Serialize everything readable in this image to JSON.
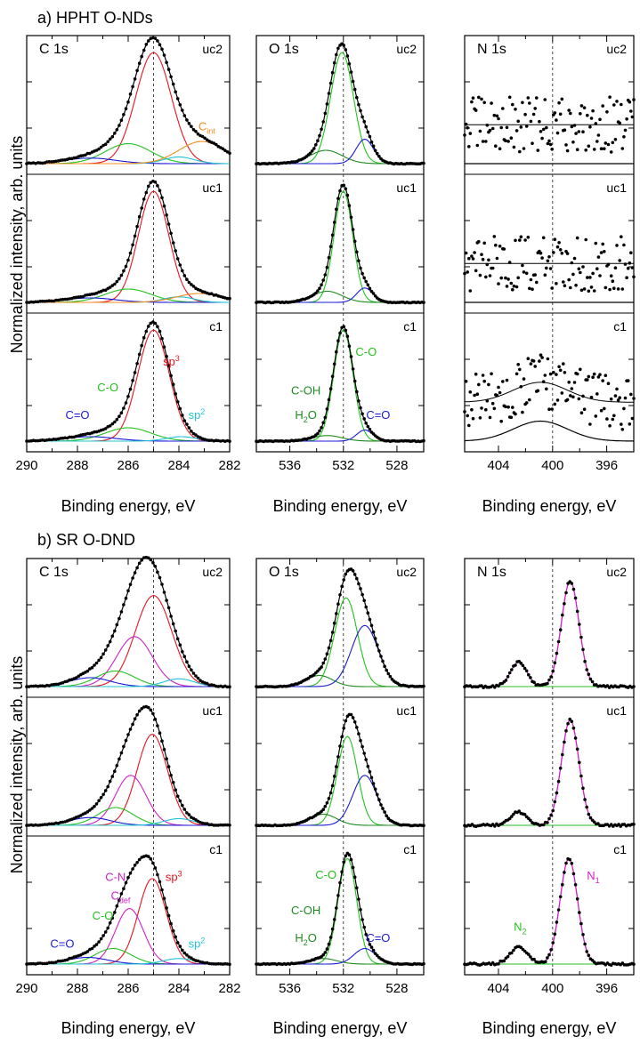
{
  "figure": {
    "section_a": "a) HPHT O-NDs",
    "section_b": "b) SR O-DND",
    "ylabel": "Normalized intensity, arb. units",
    "xlabel": "Binding energy, eV"
  },
  "colors": {
    "sp3": "#e8141c",
    "sp2": "#1fc3d6",
    "CO": "#22c21f",
    "COdark": "#1e8a1e",
    "CeqO": "#1a1ad6",
    "Cint": "#f08c1e",
    "CN": "#d020c8",
    "N1": "#d020c8",
    "N2": "#22c21f"
  },
  "chart_data": [
    {
      "type": "line",
      "id": "a-C1s",
      "title": "C 1s",
      "xlim": [
        290,
        282
      ],
      "x_reversed": true,
      "xticks": [
        290,
        288,
        286,
        284,
        282
      ],
      "ref_line": 285.0,
      "spectra": [
        {
          "name": "uc2",
          "peaks": [
            {
              "label": "sp3",
              "center": 285.0,
              "height": 1.0,
              "width": 0.7,
              "color": "#e8141c"
            },
            {
              "label": "C-O",
              "center": 286.0,
              "height": 0.18,
              "width": 0.9,
              "color": "#22c21f"
            },
            {
              "label": "C=O",
              "center": 287.5,
              "height": 0.05,
              "width": 1.0,
              "color": "#1a1ad6"
            },
            {
              "label": "sp2",
              "center": 284.0,
              "height": 0.06,
              "width": 0.6,
              "color": "#1fc3d6"
            },
            {
              "label": "Cint",
              "center": 283.1,
              "height": 0.2,
              "width": 0.9,
              "color": "#f08c1e"
            }
          ]
        },
        {
          "name": "uc1",
          "peaks": [
            {
              "label": "sp3",
              "center": 285.0,
              "height": 1.0,
              "width": 0.6,
              "color": "#e8141c"
            },
            {
              "label": "C-O",
              "center": 286.0,
              "height": 0.12,
              "width": 0.9,
              "color": "#22c21f"
            },
            {
              "label": "C=O",
              "center": 287.5,
              "height": 0.04,
              "width": 1.0,
              "color": "#1a1ad6"
            },
            {
              "label": "sp2",
              "center": 284.0,
              "height": 0.05,
              "width": 0.6,
              "color": "#1fc3d6"
            },
            {
              "label": "Cint",
              "center": 283.2,
              "height": 0.08,
              "width": 0.9,
              "color": "#f08c1e"
            }
          ]
        },
        {
          "name": "c1",
          "peaks": [
            {
              "label": "sp3",
              "center": 285.0,
              "height": 1.0,
              "width": 0.62,
              "color": "#e8141c"
            },
            {
              "label": "C-O",
              "center": 286.0,
              "height": 0.12,
              "width": 0.9,
              "color": "#22c21f"
            },
            {
              "label": "C=O",
              "center": 287.5,
              "height": 0.04,
              "width": 1.0,
              "color": "#1a1ad6"
            },
            {
              "label": "sp2",
              "center": 283.9,
              "height": 0.04,
              "width": 0.6,
              "color": "#1fc3d6"
            }
          ]
        }
      ],
      "annotations": [
        {
          "text": "C=O",
          "x": 288.0,
          "row": "c1",
          "level": 0.2,
          "color": "#1a1ad6"
        },
        {
          "text": "C-O",
          "x": 286.8,
          "row": "c1",
          "level": 0.45,
          "color": "#22c21f"
        },
        {
          "text": "sp",
          "sup": "3",
          "x": 284.3,
          "row": "c1",
          "level": 0.68,
          "color": "#e8141c"
        },
        {
          "text": "sp",
          "sup": "2",
          "x": 283.3,
          "row": "c1",
          "level": 0.2,
          "color": "#1fc3d6"
        },
        {
          "text": "C",
          "sub": "int",
          "x": 282.9,
          "row": "uc2",
          "level": 0.3,
          "color": "#f08c1e"
        }
      ]
    },
    {
      "type": "line",
      "id": "a-O1s",
      "title": "O 1s",
      "xlim": [
        538.5,
        526
      ],
      "x_reversed": true,
      "xticks": [
        536,
        532,
        528
      ],
      "ref_line": 532.0,
      "spectra": [
        {
          "name": "uc2",
          "peaks": [
            {
              "label": "C-O",
              "center": 532.1,
              "height": 1.0,
              "width": 0.85,
              "color": "#22c21f"
            },
            {
              "label": "C-OH",
              "center": 533.3,
              "height": 0.12,
              "width": 1.2,
              "color": "#1e8a1e"
            },
            {
              "label": "C=O",
              "center": 530.4,
              "height": 0.22,
              "width": 0.65,
              "color": "#1a1ad6"
            }
          ]
        },
        {
          "name": "uc1",
          "peaks": [
            {
              "label": "C-O",
              "center": 532.0,
              "height": 1.0,
              "width": 0.7,
              "color": "#22c21f"
            },
            {
              "label": "C-OH",
              "center": 533.2,
              "height": 0.1,
              "width": 1.1,
              "color": "#1e8a1e"
            },
            {
              "label": "C=O",
              "center": 530.4,
              "height": 0.13,
              "width": 0.6,
              "color": "#1a1ad6"
            }
          ]
        },
        {
          "name": "c1",
          "peaks": [
            {
              "label": "C-O",
              "center": 532.0,
              "height": 1.0,
              "width": 0.72,
              "color": "#22c21f"
            },
            {
              "label": "C-OH",
              "center": 533.2,
              "height": 0.05,
              "width": 1.1,
              "color": "#1e8a1e"
            },
            {
              "label": "C=O",
              "center": 530.4,
              "height": 0.1,
              "width": 0.6,
              "color": "#1a1ad6"
            }
          ]
        }
      ],
      "annotations": [
        {
          "text": "C-O",
          "x": 530.3,
          "row": "c1",
          "level": 0.77,
          "color": "#22c21f"
        },
        {
          "text": "C-OH",
          "x": 534.8,
          "row": "c1",
          "level": 0.42,
          "color": "#1e8a1e"
        },
        {
          "text": "H",
          "sub": "2",
          "tail": "O",
          "x": 534.8,
          "row": "c1",
          "level": 0.2,
          "color": "#1e8a1e"
        },
        {
          "text": "C=O",
          "x": 529.4,
          "row": "c1",
          "level": 0.2,
          "color": "#1a1ad6"
        }
      ]
    },
    {
      "type": "scatter",
      "id": "a-N1s",
      "title": "N 1s",
      "xlim": [
        406.5,
        394
      ],
      "x_reversed": true,
      "xticks": [
        404,
        400,
        396
      ],
      "ref_line": 400.0,
      "spectra": [
        {
          "name": "uc2",
          "noise": 0.5,
          "peaks": []
        },
        {
          "name": "uc1",
          "noise": 0.5,
          "peaks": []
        },
        {
          "name": "c1",
          "noise": 0.5,
          "peaks": [
            {
              "label": "N",
              "center": 400.9,
              "height": 0.18,
              "width": 2.0,
              "color": "#000000"
            }
          ]
        }
      ],
      "annotations": []
    },
    {
      "type": "line",
      "id": "b-C1s",
      "title": "C 1s",
      "xlim": [
        290,
        282
      ],
      "x_reversed": true,
      "xticks": [
        290,
        288,
        286,
        284,
        282
      ],
      "ref_line": 285.0,
      "spectra": [
        {
          "name": "uc2",
          "peaks": [
            {
              "label": "sp3",
              "center": 285.0,
              "height": 0.82,
              "width": 0.72,
              "color": "#e8141c"
            },
            {
              "label": "C-N",
              "center": 285.75,
              "height": 0.45,
              "width": 0.7,
              "color": "#d020c8"
            },
            {
              "label": "C-O",
              "center": 286.5,
              "height": 0.14,
              "width": 0.75,
              "color": "#22c21f"
            },
            {
              "label": "C=O",
              "center": 287.5,
              "height": 0.08,
              "width": 0.8,
              "color": "#1a1ad6"
            },
            {
              "label": "sp2",
              "center": 284.0,
              "height": 0.07,
              "width": 0.6,
              "color": "#1fc3d6"
            }
          ]
        },
        {
          "name": "uc1",
          "peaks": [
            {
              "label": "sp3",
              "center": 285.05,
              "height": 0.82,
              "width": 0.6,
              "color": "#e8141c"
            },
            {
              "label": "C-N",
              "center": 285.9,
              "height": 0.45,
              "width": 0.6,
              "color": "#d020c8"
            },
            {
              "label": "C-O",
              "center": 286.5,
              "height": 0.16,
              "width": 0.7,
              "color": "#22c21f"
            },
            {
              "label": "C=O",
              "center": 287.5,
              "height": 0.07,
              "width": 0.8,
              "color": "#1a1ad6"
            },
            {
              "label": "sp2",
              "center": 284.0,
              "height": 0.06,
              "width": 0.6,
              "color": "#1fc3d6"
            }
          ]
        },
        {
          "name": "c1",
          "peaks": [
            {
              "label": "sp3",
              "center": 285.05,
              "height": 0.77,
              "width": 0.55,
              "color": "#e8141c"
            },
            {
              "label": "C-N",
              "center": 285.95,
              "height": 0.5,
              "width": 0.55,
              "color": "#d020c8"
            },
            {
              "label": "C-O",
              "center": 286.6,
              "height": 0.14,
              "width": 0.7,
              "color": "#22c21f"
            },
            {
              "label": "C=O",
              "center": 287.6,
              "height": 0.06,
              "width": 0.8,
              "color": "#1a1ad6"
            },
            {
              "label": "sp2",
              "center": 284.0,
              "height": 0.05,
              "width": 0.6,
              "color": "#1fc3d6"
            }
          ]
        }
      ],
      "annotations": [
        {
          "text": "C-N",
          "x": 286.5,
          "row": "c1",
          "level": 0.75,
          "color": "#d020c8"
        },
        {
          "text": "C",
          "sub": "def",
          "x": 286.3,
          "row": "c1",
          "level": 0.58,
          "color": "#d020c8"
        },
        {
          "text": "C-O",
          "x": 287.0,
          "row": "c1",
          "level": 0.4,
          "color": "#22c21f"
        },
        {
          "text": "C=O",
          "x": 288.6,
          "row": "c1",
          "level": 0.15,
          "color": "#1a1ad6"
        },
        {
          "text": "sp",
          "sup": "3",
          "x": 284.2,
          "row": "c1",
          "level": 0.75,
          "color": "#e8141c"
        },
        {
          "text": "sp",
          "sup": "2",
          "x": 283.3,
          "row": "c1",
          "level": 0.15,
          "color": "#1fc3d6"
        }
      ]
    },
    {
      "type": "line",
      "id": "b-O1s",
      "title": "O 1s",
      "xlim": [
        538.5,
        526
      ],
      "x_reversed": true,
      "xticks": [
        536,
        532,
        528
      ],
      "ref_line": 532.0,
      "spectra": [
        {
          "name": "uc2",
          "peaks": [
            {
              "label": "C-O",
              "center": 531.8,
              "height": 0.8,
              "width": 0.85,
              "color": "#22c21f"
            },
            {
              "label": "C-OH",
              "center": 533.8,
              "height": 0.1,
              "width": 1.0,
              "color": "#1e8a1e"
            },
            {
              "label": "C=O",
              "center": 530.4,
              "height": 0.55,
              "width": 1.0,
              "color": "#1a1ad6"
            }
          ]
        },
        {
          "name": "uc1",
          "peaks": [
            {
              "label": "C-O",
              "center": 531.7,
              "height": 0.8,
              "width": 0.75,
              "color": "#22c21f"
            },
            {
              "label": "C-OH",
              "center": 533.5,
              "height": 0.1,
              "width": 1.0,
              "color": "#1e8a1e"
            },
            {
              "label": "C=O",
              "center": 530.4,
              "height": 0.45,
              "width": 0.9,
              "color": "#1a1ad6"
            }
          ]
        },
        {
          "name": "c1",
          "peaks": [
            {
              "label": "C-O",
              "center": 531.7,
              "height": 0.95,
              "width": 0.7,
              "color": "#22c21f"
            },
            {
              "label": "C-OH",
              "center": 533.5,
              "height": 0.05,
              "width": 1.0,
              "color": "#1e8a1e"
            },
            {
              "label": "C=O",
              "center": 530.4,
              "height": 0.14,
              "width": 0.8,
              "color": "#1a1ad6"
            }
          ]
        }
      ],
      "annotations": [
        {
          "text": "C-O",
          "x": 533.3,
          "row": "c1",
          "level": 0.77,
          "color": "#22c21f"
        },
        {
          "text": "C-OH",
          "x": 534.8,
          "row": "c1",
          "level": 0.45,
          "color": "#1e8a1e"
        },
        {
          "text": "H",
          "sub": "2",
          "tail": "O",
          "x": 534.8,
          "row": "c1",
          "level": 0.2,
          "color": "#1e8a1e"
        },
        {
          "text": "C=O",
          "x": 529.4,
          "row": "c1",
          "level": 0.2,
          "color": "#1a1ad6"
        }
      ]
    },
    {
      "type": "line",
      "id": "b-N1s",
      "title": "N 1s",
      "xlim": [
        406.5,
        394
      ],
      "x_reversed": true,
      "xticks": [
        404,
        400,
        396
      ],
      "ref_line": 400.0,
      "spectra": [
        {
          "name": "uc2",
          "noise": 0.02,
          "peaks": [
            {
              "label": "N1",
              "center": 398.7,
              "height": 0.95,
              "width": 0.65,
              "color": "#d020c8"
            },
            {
              "label": "N2",
              "center": 402.5,
              "height": 0.22,
              "width": 0.6,
              "color": "#22c21f"
            }
          ]
        },
        {
          "name": "uc1",
          "noise": 0.02,
          "peaks": [
            {
              "label": "N1",
              "center": 398.7,
              "height": 0.95,
              "width": 0.65,
              "color": "#d020c8"
            },
            {
              "label": "N2",
              "center": 402.5,
              "height": 0.12,
              "width": 0.6,
              "color": "#22c21f"
            }
          ]
        },
        {
          "name": "c1",
          "noise": 0.02,
          "peaks": [
            {
              "label": "N1",
              "center": 398.8,
              "height": 0.95,
              "width": 0.65,
              "color": "#d020c8"
            },
            {
              "label": "N2",
              "center": 402.5,
              "height": 0.15,
              "width": 0.65,
              "color": "#22c21f"
            }
          ]
        }
      ],
      "annotations": [
        {
          "text": "N",
          "sub": "1",
          "x": 397.0,
          "row": "c1",
          "level": 0.76,
          "color": "#d020c8"
        },
        {
          "text": "N",
          "sub": "2",
          "x": 402.4,
          "row": "c1",
          "level": 0.3,
          "color": "#22c21f"
        }
      ]
    }
  ]
}
